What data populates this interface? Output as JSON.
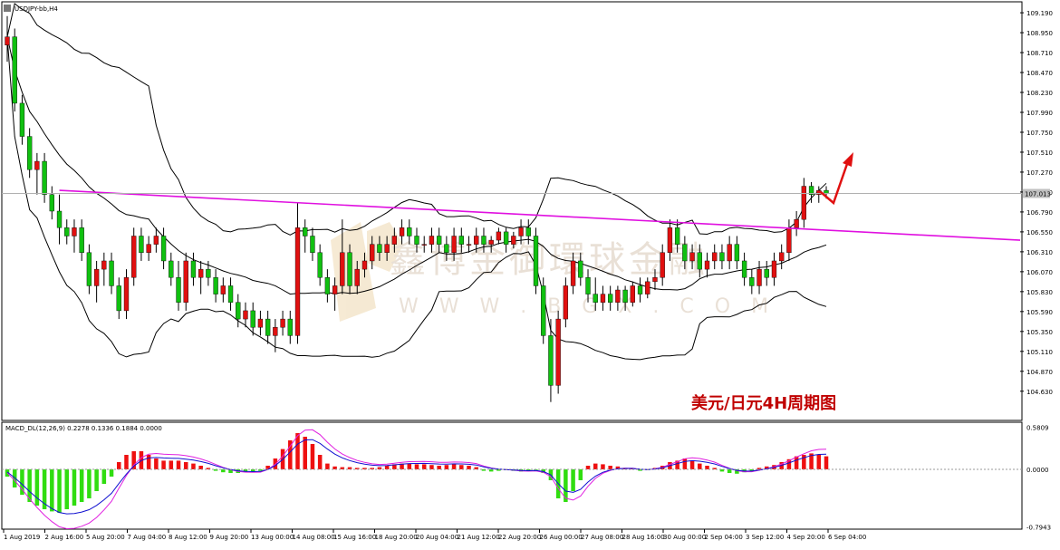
{
  "chart_data": [
    {
      "type": "candlestick",
      "symbol_label": "USDJPY-bb,H4",
      "annotation": "美元/日元4H周期图",
      "watermark_cn": "鑫博金御環球金融",
      "watermark_en": "W W W . B  G  X . C O M",
      "current_price": "107.013",
      "ylim": [
        104.3,
        109.3
      ],
      "y_ticks": [
        "109.190",
        "108.950",
        "108.710",
        "108.470",
        "108.230",
        "107.990",
        "107.750",
        "107.510",
        "107.270",
        "107.030",
        "106.790",
        "106.550",
        "106.310",
        "106.070",
        "105.830",
        "105.590",
        "105.350",
        "105.110",
        "104.870",
        "104.630"
      ],
      "x_ticks": [
        "1 Aug 2019",
        "2 Aug 16:00",
        "5 Aug 20:00",
        "7 Aug 04:00",
        "8 Aug 12:00",
        "9 Aug 20:00",
        "13 Aug 00:00",
        "14 Aug 08:00",
        "15 Aug 16:00",
        "18 Aug 20:00",
        "20 Aug 04:00",
        "21 Aug 12:00",
        "22 Aug 20:00",
        "26 Aug 00:00",
        "27 Aug 08:00",
        "28 Aug 16:00",
        "30 Aug 00:00",
        "2 Sep 04:00",
        "3 Sep 12:00",
        "4 Sep 20:00",
        "6 Sep 04:00"
      ],
      "candles": [
        [
          108.8,
          109.15,
          108.6,
          108.9
        ],
        [
          108.9,
          109.0,
          108.0,
          108.1
        ],
        [
          108.1,
          108.2,
          107.6,
          107.7
        ],
        [
          107.7,
          107.8,
          107.2,
          107.3
        ],
        [
          107.3,
          107.5,
          107.0,
          107.4
        ],
        [
          107.4,
          107.5,
          106.9,
          107.0
        ],
        [
          107.0,
          107.1,
          106.7,
          106.8
        ],
        [
          106.8,
          107.0,
          106.4,
          106.6
        ],
        [
          106.6,
          106.7,
          106.4,
          106.5
        ],
        [
          106.5,
          106.7,
          106.3,
          106.6
        ],
        [
          106.6,
          106.7,
          106.2,
          106.3
        ],
        [
          106.3,
          106.4,
          105.8,
          105.9
        ],
        [
          105.9,
          106.2,
          105.7,
          106.1
        ],
        [
          106.1,
          106.3,
          105.9,
          106.2
        ],
        [
          106.2,
          106.3,
          105.8,
          105.9
        ],
        [
          105.9,
          106.0,
          105.5,
          105.6
        ],
        [
          105.6,
          106.1,
          105.5,
          106.0
        ],
        [
          106.0,
          106.6,
          105.9,
          106.5
        ],
        [
          106.5,
          106.6,
          106.2,
          106.3
        ],
        [
          106.3,
          106.5,
          106.2,
          106.4
        ],
        [
          106.4,
          106.6,
          106.3,
          106.5
        ],
        [
          106.5,
          106.6,
          106.1,
          106.2
        ],
        [
          106.2,
          106.3,
          105.9,
          106.0
        ],
        [
          106.0,
          106.2,
          105.6,
          105.7
        ],
        [
          105.7,
          106.3,
          105.6,
          106.2
        ],
        [
          106.2,
          106.3,
          105.9,
          106.0
        ],
        [
          106.0,
          106.2,
          105.8,
          106.1
        ],
        [
          106.1,
          106.2,
          105.9,
          106.0
        ],
        [
          106.0,
          106.1,
          105.7,
          105.8
        ],
        [
          105.8,
          106.0,
          105.7,
          105.9
        ],
        [
          105.9,
          106.0,
          105.6,
          105.7
        ],
        [
          105.7,
          105.8,
          105.4,
          105.5
        ],
        [
          105.5,
          105.7,
          105.4,
          105.6
        ],
        [
          105.6,
          105.7,
          105.3,
          105.4
        ],
        [
          105.4,
          105.6,
          105.3,
          105.5
        ],
        [
          105.5,
          105.6,
          105.2,
          105.3
        ],
        [
          105.3,
          105.5,
          105.1,
          105.4
        ],
        [
          105.4,
          105.6,
          105.3,
          105.5
        ],
        [
          105.5,
          105.6,
          105.2,
          105.3
        ],
        [
          105.3,
          106.9,
          105.2,
          106.6
        ],
        [
          106.6,
          106.7,
          106.3,
          106.5
        ],
        [
          106.5,
          106.6,
          106.2,
          106.3
        ],
        [
          106.3,
          106.4,
          105.9,
          106.0
        ],
        [
          106.0,
          106.1,
          105.7,
          105.8
        ],
        [
          105.8,
          106.0,
          105.6,
          105.9
        ],
        [
          105.9,
          106.7,
          105.8,
          106.3
        ],
        [
          106.3,
          106.4,
          105.8,
          105.9
        ],
        [
          105.9,
          106.2,
          105.8,
          106.1
        ],
        [
          106.1,
          106.3,
          106.0,
          106.2
        ],
        [
          106.2,
          106.5,
          106.1,
          106.4
        ],
        [
          106.4,
          106.5,
          106.2,
          106.3
        ],
        [
          106.3,
          106.5,
          106.2,
          106.4
        ],
        [
          106.4,
          106.6,
          106.3,
          106.5
        ],
        [
          106.5,
          106.7,
          106.4,
          106.6
        ],
        [
          106.6,
          106.7,
          106.4,
          106.5
        ],
        [
          106.5,
          106.6,
          106.3,
          106.4
        ],
        [
          106.4,
          106.5,
          106.3,
          106.4
        ],
        [
          106.4,
          106.6,
          106.3,
          106.5
        ],
        [
          106.5,
          106.6,
          106.3,
          106.4
        ],
        [
          106.4,
          106.5,
          106.2,
          106.3
        ],
        [
          106.3,
          106.6,
          106.2,
          106.5
        ],
        [
          106.5,
          106.6,
          106.3,
          106.4
        ],
        [
          106.4,
          106.5,
          106.3,
          106.4
        ],
        [
          106.4,
          106.6,
          106.3,
          106.5
        ],
        [
          106.5,
          106.6,
          106.3,
          106.4
        ],
        [
          106.4,
          106.5,
          106.3,
          106.45
        ],
        [
          106.45,
          106.6,
          106.4,
          106.55
        ],
        [
          106.55,
          106.6,
          106.3,
          106.4
        ],
        [
          106.4,
          106.55,
          106.35,
          106.5
        ],
        [
          106.5,
          106.7,
          106.4,
          106.6
        ],
        [
          106.6,
          106.7,
          106.4,
          106.5
        ],
        [
          106.5,
          106.6,
          105.8,
          105.9
        ],
        [
          105.9,
          106.0,
          105.2,
          105.3
        ],
        [
          105.3,
          105.5,
          104.5,
          104.7
        ],
        [
          104.7,
          105.6,
          104.6,
          105.5
        ],
        [
          105.5,
          106.0,
          105.4,
          105.9
        ],
        [
          105.9,
          106.3,
          105.8,
          106.2
        ],
        [
          106.2,
          106.3,
          105.9,
          106.0
        ],
        [
          106.0,
          106.1,
          105.7,
          105.8
        ],
        [
          105.8,
          106.0,
          105.6,
          105.7
        ],
        [
          105.7,
          105.9,
          105.6,
          105.8
        ],
        [
          105.8,
          105.9,
          105.6,
          105.7
        ],
        [
          105.7,
          105.9,
          105.6,
          105.85
        ],
        [
          105.85,
          105.9,
          105.6,
          105.7
        ],
        [
          105.7,
          105.95,
          105.65,
          105.9
        ],
        [
          105.9,
          106.0,
          105.7,
          105.8
        ],
        [
          105.8,
          106.0,
          105.75,
          105.95
        ],
        [
          105.95,
          106.1,
          105.85,
          106.0
        ],
        [
          106.0,
          106.4,
          105.9,
          106.3
        ],
        [
          106.3,
          106.7,
          106.2,
          106.6
        ],
        [
          106.6,
          106.7,
          106.3,
          106.4
        ],
        [
          106.4,
          106.5,
          106.1,
          106.2
        ],
        [
          106.2,
          106.4,
          106.1,
          106.3
        ],
        [
          106.3,
          106.4,
          106.0,
          106.1
        ],
        [
          106.1,
          106.3,
          106.0,
          106.2
        ],
        [
          106.2,
          106.4,
          106.1,
          106.3
        ],
        [
          106.3,
          106.4,
          106.1,
          106.2
        ],
        [
          106.2,
          106.5,
          106.1,
          106.4
        ],
        [
          106.4,
          106.5,
          106.1,
          106.2
        ],
        [
          106.2,
          106.3,
          105.9,
          106.0
        ],
        [
          106.0,
          106.1,
          105.8,
          105.9
        ],
        [
          105.9,
          106.2,
          105.8,
          106.1
        ],
        [
          106.1,
          106.2,
          105.9,
          106.0
        ],
        [
          106.0,
          106.3,
          105.9,
          106.2
        ],
        [
          106.2,
          106.4,
          106.1,
          106.3
        ],
        [
          106.3,
          106.7,
          106.2,
          106.6
        ],
        [
          106.6,
          106.8,
          106.5,
          106.7
        ],
        [
          106.7,
          107.2,
          106.6,
          107.1
        ],
        [
          107.1,
          107.15,
          106.9,
          107.0
        ],
        [
          107.0,
          107.1,
          106.9,
          107.05
        ],
        [
          107.05,
          107.1,
          106.95,
          107.01
        ]
      ],
      "trendline": {
        "label": "resistance line",
        "color": "#e010e0",
        "from": [
          7,
          107.05
        ],
        "to": [
          160,
          106.45
        ]
      },
      "indicator": {
        "label": "MACD_DL(12,26,9) 0.2278 0.1336 0.1884 0.0000",
        "y_ticks": [
          "0.5809",
          "0.0000",
          "-0.7943"
        ],
        "ylim": [
          -0.8,
          0.6
        ],
        "histogram": [
          -0.1,
          -0.25,
          -0.35,
          -0.45,
          -0.5,
          -0.55,
          -0.58,
          -0.6,
          -0.55,
          -0.5,
          -0.45,
          -0.4,
          -0.3,
          -0.2,
          -0.1,
          0.1,
          0.2,
          0.25,
          0.25,
          0.2,
          0.15,
          0.12,
          0.12,
          0.12,
          0.1,
          0.08,
          0.05,
          0.02,
          -0.02,
          -0.04,
          -0.05,
          -0.05,
          -0.04,
          -0.03,
          -0.02,
          0.05,
          0.15,
          0.28,
          0.4,
          0.5,
          0.45,
          0.35,
          0.2,
          0.08,
          0.04,
          0.03,
          0.03,
          0.02,
          0.02,
          0.02,
          0.03,
          0.05,
          0.07,
          0.08,
          0.08,
          0.07,
          0.07,
          0.06,
          0.05,
          0.06,
          0.07,
          0.06,
          0.05,
          0.03,
          -0.02,
          -0.03,
          -0.02,
          -0.01,
          -0.02,
          -0.03,
          -0.02,
          -0.01,
          -0.05,
          -0.15,
          -0.4,
          -0.45,
          -0.3,
          -0.15,
          0.05,
          0.08,
          0.07,
          0.05,
          0.04,
          0.02,
          0.01,
          -0.02,
          -0.01,
          0.02,
          0.05,
          0.1,
          0.12,
          0.15,
          0.12,
          0.08,
          0.05,
          0.02,
          -0.03,
          -0.05,
          -0.06,
          -0.04,
          -0.02,
          0.02,
          0.04,
          0.06,
          0.1,
          0.14,
          0.18,
          0.2,
          0.22,
          0.2,
          0.18
        ],
        "signal_color": "#1010d0",
        "macd_color": "#e020e0"
      }
    }
  ]
}
